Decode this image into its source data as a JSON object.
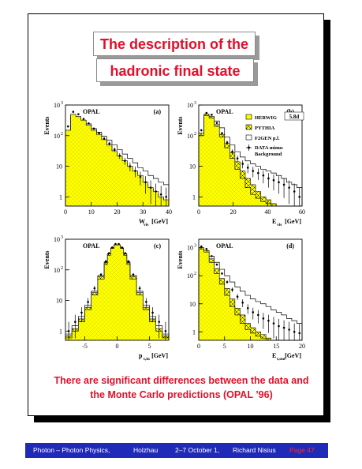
{
  "title": {
    "line1": "The description of the",
    "line2": "hadronic final state"
  },
  "conclusion": {
    "line1": "There are significant differences between the data and",
    "line2": "the Monte Carlo predictions (OPAL ’96)"
  },
  "footer": {
    "course": "Photon – Photon Physics,",
    "place": "Holzhau",
    "dates": "2–7 October 1,",
    "author": "Richard Nisius",
    "page": "Page 47"
  },
  "colors": {
    "accent_red": "#e0102a",
    "footer_blue": "#1f2bb8",
    "herwig_fill": "#ffff00"
  },
  "legend": {
    "herwig": "HERWIG",
    "herwig_version": "5.8d",
    "pythia": "PYTHIA",
    "f2gen": "F2GEN p.l.",
    "data_line1": "DATA minus",
    "data_line2": "Background"
  },
  "chart_data": [
    {
      "id": "a",
      "type": "histogram",
      "experiment": "OPAL",
      "panel_label": "(a)",
      "xlabel": "W",
      "xlabel_sub": "vis",
      "xlabel_unit": "[GeV]",
      "ylabel": "Events",
      "yscale": "log",
      "ylim": [
        0.5,
        1000
      ],
      "xlim": [
        0,
        40
      ],
      "xticks": [
        "0",
        "10",
        "20",
        "30",
        "40"
      ],
      "bins": [
        0,
        2,
        4,
        6,
        8,
        10,
        12,
        14,
        16,
        18,
        20,
        22,
        24,
        26,
        28,
        30,
        32,
        34,
        36,
        38,
        40
      ],
      "herwig": [
        150,
        500,
        420,
        320,
        220,
        150,
        110,
        75,
        50,
        32,
        22,
        15,
        10,
        7,
        5,
        3,
        2,
        1.5,
        1,
        0.8
      ],
      "pythia": [
        140,
        450,
        390,
        300,
        210,
        140,
        100,
        70,
        45,
        30,
        20,
        13,
        9,
        6,
        4,
        2.5,
        1.8,
        1.2,
        0.9,
        0.7
      ],
      "f2gen": [
        120,
        420,
        400,
        320,
        240,
        170,
        130,
        95,
        70,
        50,
        35,
        25,
        18,
        13,
        9,
        7,
        5,
        4,
        3,
        2.5
      ],
      "data": [
        200,
        600,
        500,
        350,
        250,
        170,
        120,
        80,
        55,
        35,
        22,
        15,
        10,
        7,
        4.5,
        3,
        2,
        1.5,
        1.2,
        1
      ]
    },
    {
      "id": "b",
      "type": "histogram",
      "experiment": "OPAL",
      "panel_label": "(b)",
      "xlabel": "E",
      "xlabel_sub": "vis",
      "xlabel_unit": "[GeV]",
      "ylabel": "Events",
      "yscale": "log",
      "ylim": [
        0.5,
        1000
      ],
      "xlim": [
        0,
        60
      ],
      "xticks": [
        "0",
        "20",
        "40",
        "60"
      ],
      "bins": [
        0,
        3,
        6,
        9,
        12,
        15,
        18,
        21,
        24,
        27,
        30,
        33,
        36,
        39,
        42,
        45,
        48,
        51,
        54,
        57,
        60
      ],
      "herwig": [
        100,
        450,
        380,
        200,
        90,
        40,
        18,
        8,
        4,
        2,
        1.2,
        0.9,
        0.7,
        0.6,
        0.5,
        0.5,
        0.5,
        0.5,
        0.5,
        0.5
      ],
      "pythia": [
        120,
        500,
        420,
        230,
        110,
        55,
        28,
        14,
        7,
        4,
        2.5,
        1.5,
        1,
        0.8,
        0.6,
        0.5,
        0.5,
        0.5,
        0.5,
        0.5
      ],
      "f2gen": [
        80,
        380,
        400,
        300,
        180,
        90,
        50,
        30,
        20,
        15,
        12,
        10,
        8,
        7,
        6,
        5,
        4,
        3,
        2.5,
        2
      ],
      "data": [
        150,
        550,
        480,
        260,
        120,
        60,
        30,
        18,
        12,
        9,
        7,
        6,
        5,
        4,
        3.5,
        3,
        2.5,
        2,
        1.5,
        1
      ]
    },
    {
      "id": "c",
      "type": "histogram",
      "experiment": "OPAL",
      "panel_label": "(c)",
      "xlabel": "p",
      "xlabel_sub": "t,in",
      "xlabel_unit": "[GeV]",
      "ylabel": "Events",
      "yscale": "log",
      "ylim": [
        0.5,
        1000
      ],
      "xlim": [
        -8,
        8
      ],
      "xticks": [
        "-5",
        "0",
        "5"
      ],
      "bins": [
        -8,
        -7,
        -6,
        -5,
        -4,
        -3,
        -2,
        -1.5,
        -1,
        -0.5,
        0,
        0.5,
        1,
        1.5,
        2,
        3,
        4,
        5,
        6,
        7,
        8
      ],
      "herwig": [
        0.6,
        1,
        2,
        5,
        15,
        50,
        150,
        300,
        500,
        650,
        650,
        500,
        300,
        150,
        50,
        15,
        5,
        2,
        1,
        0.6
      ],
      "pythia": [
        0.7,
        1.2,
        2.5,
        6,
        18,
        60,
        170,
        330,
        520,
        660,
        660,
        520,
        330,
        170,
        60,
        18,
        6,
        2.5,
        1.2,
        0.7
      ],
      "f2gen": [
        0.8,
        1.5,
        3,
        7,
        20,
        65,
        180,
        340,
        520,
        650,
        650,
        520,
        340,
        180,
        65,
        20,
        7,
        3,
        1.5,
        0.8
      ],
      "data": [
        1,
        2,
        4,
        9,
        25,
        70,
        190,
        350,
        540,
        700,
        700,
        540,
        350,
        190,
        70,
        25,
        9,
        4,
        2,
        1
      ]
    },
    {
      "id": "d",
      "type": "histogram",
      "experiment": "OPAL",
      "panel_label": "(d)",
      "xlabel": "E",
      "xlabel_sub": "t,out",
      "xlabel_unit": "[GeV]",
      "ylabel": "Events",
      "yscale": "log",
      "ylim": [
        0.5,
        2000
      ],
      "xlim": [
        0,
        20
      ],
      "xticks": [
        "0",
        "5",
        "10",
        "15",
        "20"
      ],
      "bins": [
        0,
        1,
        2,
        3,
        4,
        5,
        6,
        7,
        8,
        9,
        10,
        11,
        12,
        13,
        14,
        15,
        16,
        17,
        18,
        19,
        20
      ],
      "herwig": [
        900,
        700,
        300,
        120,
        50,
        20,
        8,
        4,
        2,
        1.2,
        0.9,
        0.7,
        0.6,
        0.5,
        0.5,
        0.5,
        0.5,
        0.5,
        0.5,
        0.5
      ],
      "pythia": [
        1000,
        800,
        400,
        180,
        80,
        35,
        15,
        7,
        4,
        2,
        1.4,
        1,
        0.8,
        0.6,
        0.5,
        0.5,
        0.5,
        0.5,
        0.5,
        0.5
      ],
      "f2gen": [
        700,
        750,
        500,
        300,
        170,
        100,
        60,
        40,
        28,
        20,
        15,
        12,
        10,
        8,
        6,
        5,
        4,
        3,
        2.5,
        2
      ],
      "data": [
        1100,
        900,
        500,
        250,
        120,
        60,
        32,
        18,
        11,
        7,
        5,
        4,
        3,
        2.5,
        2,
        1.6,
        1.4,
        1.2,
        1,
        0.9
      ]
    }
  ]
}
